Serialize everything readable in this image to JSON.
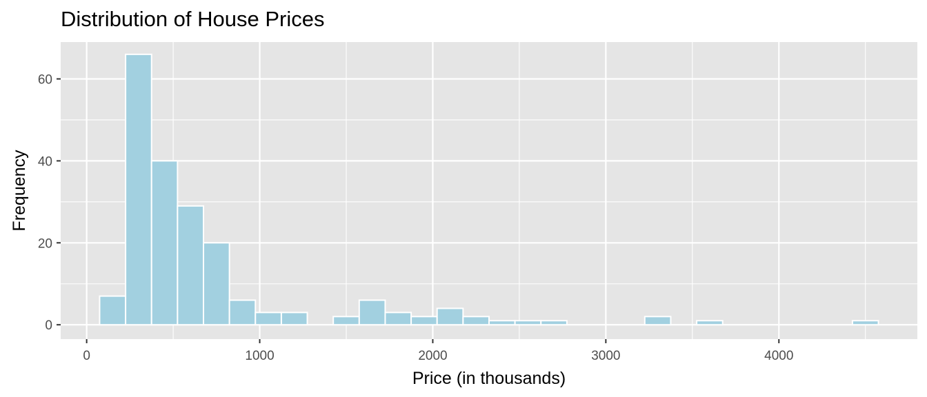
{
  "chart_data": {
    "type": "bar",
    "title": "Distribution of House Prices",
    "xlabel": "Price (in thousands)",
    "ylabel": "Frequency",
    "bar_color": "#a2d0e0",
    "bar_outline": "#ffffff",
    "panel_color": "#e5e5e5",
    "grid": true,
    "xlim": [
      -150,
      4800
    ],
    "ylim": [
      -3.5,
      69
    ],
    "x_ticks": [
      0,
      1000,
      2000,
      3000,
      4000
    ],
    "y_ticks": [
      0,
      20,
      40,
      60
    ],
    "bin_width": 150,
    "bins": [
      {
        "x0": 75,
        "x1": 225,
        "count": 7
      },
      {
        "x0": 225,
        "x1": 375,
        "count": 66
      },
      {
        "x0": 375,
        "x1": 525,
        "count": 40
      },
      {
        "x0": 525,
        "x1": 675,
        "count": 29
      },
      {
        "x0": 675,
        "x1": 825,
        "count": 20
      },
      {
        "x0": 825,
        "x1": 975,
        "count": 6
      },
      {
        "x0": 975,
        "x1": 1125,
        "count": 3
      },
      {
        "x0": 1125,
        "x1": 1275,
        "count": 3
      },
      {
        "x0": 1275,
        "x1": 1425,
        "count": 0
      },
      {
        "x0": 1425,
        "x1": 1575,
        "count": 2
      },
      {
        "x0": 1575,
        "x1": 1725,
        "count": 6
      },
      {
        "x0": 1725,
        "x1": 1875,
        "count": 3
      },
      {
        "x0": 1875,
        "x1": 2025,
        "count": 2
      },
      {
        "x0": 2025,
        "x1": 2175,
        "count": 4
      },
      {
        "x0": 2175,
        "x1": 2325,
        "count": 2
      },
      {
        "x0": 2325,
        "x1": 2475,
        "count": 1
      },
      {
        "x0": 2475,
        "x1": 2625,
        "count": 1
      },
      {
        "x0": 2625,
        "x1": 2775,
        "count": 1
      },
      {
        "x0": 2775,
        "x1": 2925,
        "count": 0
      },
      {
        "x0": 2925,
        "x1": 3075,
        "count": 0
      },
      {
        "x0": 3075,
        "x1": 3225,
        "count": 0
      },
      {
        "x0": 3225,
        "x1": 3375,
        "count": 2
      },
      {
        "x0": 3375,
        "x1": 3525,
        "count": 0
      },
      {
        "x0": 3525,
        "x1": 3675,
        "count": 1
      },
      {
        "x0": 3675,
        "x1": 3825,
        "count": 0
      },
      {
        "x0": 3825,
        "x1": 3975,
        "count": 0
      },
      {
        "x0": 3975,
        "x1": 4125,
        "count": 0
      },
      {
        "x0": 4125,
        "x1": 4275,
        "count": 0
      },
      {
        "x0": 4275,
        "x1": 4425,
        "count": 0
      },
      {
        "x0": 4425,
        "x1": 4575,
        "count": 1
      }
    ]
  }
}
